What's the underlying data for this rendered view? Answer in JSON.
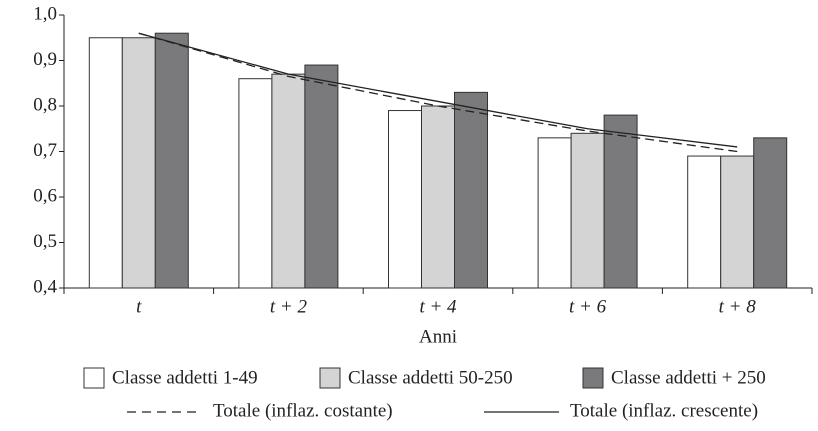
{
  "chart_data": {
    "type": "bar",
    "x_label": "Anni",
    "categories": [
      "t",
      "t + 2",
      "t + 4",
      "t + 6",
      "t + 8"
    ],
    "series": [
      {
        "name": "Classe addetti 1-49",
        "type": "bar",
        "color": "#ffffff",
        "values": [
          0.95,
          0.86,
          0.79,
          0.73,
          0.69
        ]
      },
      {
        "name": "Classe addetti 50-250",
        "type": "bar",
        "color": "#d4d4d4",
        "values": [
          0.95,
          0.87,
          0.8,
          0.74,
          0.69
        ]
      },
      {
        "name": "Classe addetti + 250",
        "type": "bar",
        "color": "#7a7a7c",
        "values": [
          0.96,
          0.89,
          0.83,
          0.78,
          0.73
        ]
      },
      {
        "name": "Totale (inflaz. costante)",
        "type": "line",
        "line_style": "dashed",
        "color": "#222222",
        "values": [
          0.96,
          0.865,
          0.8,
          0.745,
          0.7
        ]
      },
      {
        "name": "Totale (inflaz. crescente)",
        "type": "line",
        "line_style": "solid",
        "color": "#222222",
        "values": [
          0.96,
          0.87,
          0.81,
          0.75,
          0.71
        ]
      }
    ],
    "ylim": [
      0.4,
      1.0
    ],
    "yticks": [
      {
        "value": 0.4,
        "label": "0,4"
      },
      {
        "value": 0.5,
        "label": "0,5"
      },
      {
        "value": 0.6,
        "label": "0,6"
      },
      {
        "value": 0.7,
        "label": "0,7"
      },
      {
        "value": 0.8,
        "label": "0,8"
      },
      {
        "value": 0.9,
        "label": "0,9"
      },
      {
        "value": 1.0,
        "label": "1,0"
      }
    ]
  }
}
